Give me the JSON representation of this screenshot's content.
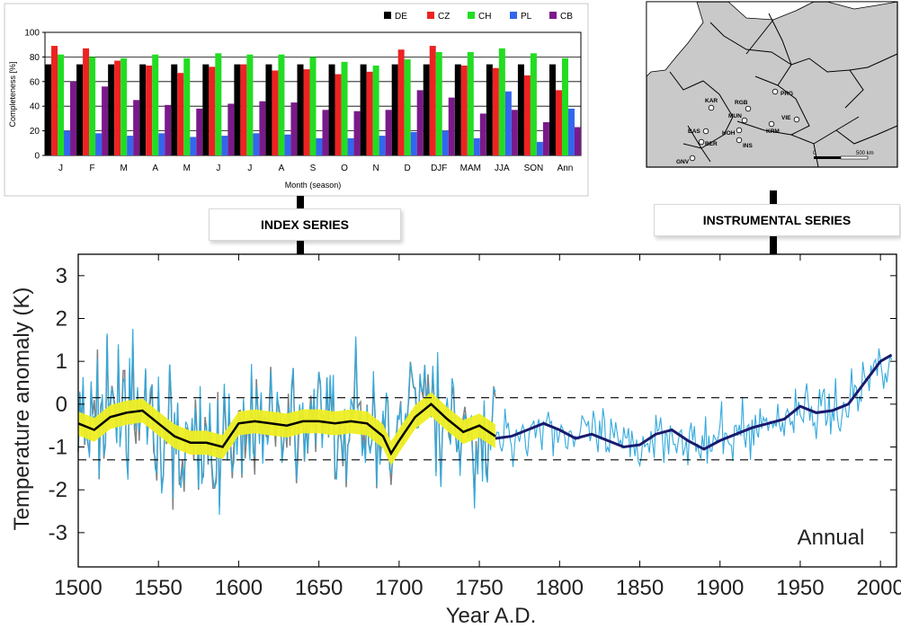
{
  "callouts": {
    "index": "INDEX SERIES",
    "instrumental": "INSTRUMENTAL SERIES"
  },
  "map": {
    "stations": [
      "KAR",
      "RGB",
      "PRG",
      "MUN",
      "HOH",
      "BAS",
      "VIE",
      "KRM",
      "INS",
      "BER",
      "GNV"
    ],
    "scale_start": "0",
    "scale_end": "500 km"
  },
  "chart_data": [
    {
      "type": "bar",
      "title": "",
      "ylabel": "Completeness [%]",
      "xlabel": "Month (season)",
      "ylim": [
        0,
        100
      ],
      "yticks": [
        0,
        20,
        40,
        60,
        80,
        100
      ],
      "categories": [
        "J",
        "F",
        "M",
        "A",
        "M",
        "J",
        "J",
        "A",
        "S",
        "O",
        "N",
        "D",
        "DJF",
        "MAM",
        "JJA",
        "SON",
        "Ann"
      ],
      "legend_position": "top-right",
      "series": [
        {
          "name": "DE",
          "color": "#000000",
          "values": [
            74,
            74,
            74,
            74,
            74,
            74,
            74,
            74,
            74,
            74,
            74,
            74,
            74,
            74,
            74,
            74,
            74
          ]
        },
        {
          "name": "CZ",
          "color": "#ee2222",
          "values": [
            89,
            87,
            77,
            73,
            67,
            72,
            74,
            69,
            70,
            66,
            68,
            86,
            89,
            73,
            71,
            65,
            53
          ]
        },
        {
          "name": "CH",
          "color": "#22dd22",
          "values": [
            82,
            80,
            79,
            82,
            79,
            83,
            82,
            82,
            80,
            76,
            73,
            78,
            84,
            84,
            87,
            83,
            79
          ]
        },
        {
          "name": "PL",
          "color": "#3366ee",
          "values": [
            20,
            18,
            16,
            18,
            15,
            16,
            18,
            17,
            14,
            14,
            16,
            19,
            20,
            14,
            52,
            11,
            38
          ]
        },
        {
          "name": "CB",
          "color": "#7a1a8a",
          "values": [
            60,
            56,
            45,
            41,
            38,
            42,
            44,
            43,
            37,
            36,
            37,
            53,
            47,
            34,
            37,
            27,
            23
          ]
        }
      ]
    },
    {
      "type": "line",
      "title": "",
      "annotation": "Annual",
      "ylabel": "Temperature anomaly (K)",
      "xlabel": "Year A.D.",
      "xlim": [
        1500,
        2010
      ],
      "ylim": [
        -3.8,
        3.5
      ],
      "xticks": [
        1500,
        1550,
        1600,
        1650,
        1700,
        1750,
        1800,
        1850,
        1900,
        1950,
        2000
      ],
      "yticks": [
        -3,
        -2,
        -1,
        0,
        1,
        2,
        3
      ],
      "reference_lines": [
        0.15,
        -1.3
      ],
      "smooth_index": {
        "x": [
          1500,
          1510,
          1520,
          1530,
          1540,
          1550,
          1560,
          1570,
          1580,
          1590,
          1600,
          1610,
          1620,
          1630,
          1640,
          1650,
          1660,
          1670,
          1680,
          1690,
          1695,
          1700,
          1710,
          1720,
          1730,
          1740,
          1750,
          1760
        ],
        "y": [
          -0.45,
          -0.6,
          -0.3,
          -0.2,
          -0.15,
          -0.45,
          -0.75,
          -0.9,
          -0.9,
          -1.0,
          -0.45,
          -0.4,
          -0.45,
          -0.5,
          -0.4,
          -0.4,
          -0.45,
          -0.4,
          -0.45,
          -0.75,
          -1.15,
          -0.85,
          -0.3,
          0.0,
          -0.35,
          -0.65,
          -0.5,
          -0.75
        ]
      },
      "smooth_instrumental": {
        "x": [
          1760,
          1770,
          1780,
          1790,
          1800,
          1810,
          1820,
          1830,
          1840,
          1850,
          1860,
          1870,
          1880,
          1890,
          1900,
          1910,
          1920,
          1930,
          1940,
          1950,
          1960,
          1970,
          1980,
          1990,
          2000,
          2007
        ],
        "y": [
          -0.8,
          -0.75,
          -0.6,
          -0.45,
          -0.6,
          -0.8,
          -0.7,
          -0.85,
          -1.0,
          -0.95,
          -0.7,
          -0.6,
          -0.85,
          -1.05,
          -0.85,
          -0.7,
          -0.55,
          -0.45,
          -0.35,
          -0.05,
          -0.2,
          -0.15,
          0.0,
          0.5,
          1.0,
          1.15
        ]
      },
      "series": [
        {
          "name": "",
          "color": "#808080"
        },
        {
          "name": "",
          "color": "#33aadd"
        },
        {
          "name": "",
          "color": "#eeee22"
        },
        {
          "name": "",
          "color": "#000000"
        },
        {
          "name": "",
          "color": "#1a1a6e"
        }
      ]
    }
  ]
}
